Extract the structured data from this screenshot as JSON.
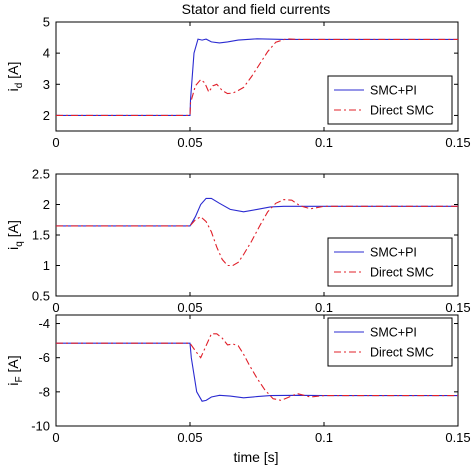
{
  "figure": {
    "title": "Stator and field currents",
    "xlabel": "time [s]"
  },
  "chart_data": [
    {
      "type": "line",
      "ylabel_main": "i",
      "ylabel_sub": "d",
      "ylabel_unit": "[A]",
      "xlim": [
        0,
        0.15
      ],
      "ylim": [
        1.5,
        5
      ],
      "xticks": [
        0,
        0.05,
        0.1,
        0.15
      ],
      "xtick_labels": [
        "0",
        "0.05",
        "0.1",
        "0.15"
      ],
      "yticks": [
        2,
        3,
        4,
        5
      ],
      "ytick_labels": [
        "2",
        "3",
        "4",
        "5"
      ],
      "legend_position": "bottom-right",
      "series": [
        {
          "name": "SMC+PI",
          "color": "#2b2bd1",
          "dash": "solid",
          "x": [
            0,
            0.05,
            0.0502,
            0.0515,
            0.053,
            0.0545,
            0.056,
            0.058,
            0.061,
            0.064,
            0.068,
            0.075,
            0.085,
            0.1,
            0.12,
            0.15
          ],
          "y": [
            2.0,
            2.0,
            2.5,
            4.0,
            4.45,
            4.42,
            4.45,
            4.36,
            4.33,
            4.36,
            4.42,
            4.46,
            4.44,
            4.44,
            4.44,
            4.44
          ]
        },
        {
          "name": "Direct SMC",
          "color": "#e0202a",
          "dash": "dashdot",
          "x": [
            0,
            0.05,
            0.0502,
            0.052,
            0.054,
            0.0555,
            0.057,
            0.0585,
            0.06,
            0.062,
            0.064,
            0.066,
            0.068,
            0.07,
            0.073,
            0.076,
            0.079,
            0.082,
            0.086,
            0.09,
            0.1,
            0.12,
            0.15
          ],
          "y": [
            2.0,
            2.0,
            2.4,
            2.95,
            3.15,
            3.05,
            2.75,
            2.95,
            3.0,
            2.8,
            2.7,
            2.72,
            2.8,
            2.9,
            3.25,
            3.65,
            4.05,
            4.35,
            4.46,
            4.44,
            4.44,
            4.44,
            4.44
          ]
        }
      ]
    },
    {
      "type": "line",
      "ylabel_main": "i",
      "ylabel_sub": "q",
      "ylabel_unit": "[A]",
      "xlim": [
        0,
        0.15
      ],
      "ylim": [
        0.5,
        2.5
      ],
      "xticks": [
        0,
        0.05,
        0.1,
        0.15
      ],
      "xtick_labels": [
        "0",
        "0.05",
        "0.1",
        "0.15"
      ],
      "yticks": [
        0.5,
        1,
        1.5,
        2,
        2.5
      ],
      "ytick_labels": [
        "0.5",
        "1",
        "1.5",
        "2",
        "2.5"
      ],
      "legend_position": "bottom-right",
      "series": [
        {
          "name": "SMC+PI",
          "color": "#2b2bd1",
          "dash": "solid",
          "x": [
            0,
            0.05,
            0.052,
            0.054,
            0.056,
            0.058,
            0.061,
            0.065,
            0.07,
            0.075,
            0.08,
            0.085,
            0.09,
            0.1,
            0.12,
            0.15
          ],
          "y": [
            1.65,
            1.65,
            1.8,
            2.0,
            2.1,
            2.1,
            2.02,
            1.92,
            1.88,
            1.92,
            1.96,
            1.97,
            1.97,
            1.97,
            1.97,
            1.97
          ]
        },
        {
          "name": "Direct SMC",
          "color": "#e0202a",
          "dash": "dashdot",
          "x": [
            0,
            0.05,
            0.052,
            0.054,
            0.056,
            0.058,
            0.06,
            0.062,
            0.064,
            0.066,
            0.068,
            0.07,
            0.073,
            0.076,
            0.079,
            0.082,
            0.085,
            0.088,
            0.091,
            0.095,
            0.1,
            0.12,
            0.15
          ],
          "y": [
            1.65,
            1.65,
            1.75,
            1.8,
            1.72,
            1.55,
            1.3,
            1.1,
            1.0,
            1.0,
            1.05,
            1.18,
            1.4,
            1.65,
            1.88,
            2.02,
            2.08,
            2.07,
            1.98,
            1.93,
            1.97,
            1.97,
            1.97
          ]
        }
      ]
    },
    {
      "type": "line",
      "ylabel_main": "i",
      "ylabel_sub": "F",
      "ylabel_unit": "[A]",
      "xlim": [
        0,
        0.15
      ],
      "ylim": [
        -10,
        -3.5
      ],
      "xticks": [
        0,
        0.05,
        0.1,
        0.15
      ],
      "xtick_labels": [
        "0",
        "0.05",
        "0.1",
        "0.15"
      ],
      "yticks": [
        -10,
        -8,
        -6,
        -4
      ],
      "ytick_labels": [
        "-10",
        "-8",
        "-6",
        "-4"
      ],
      "legend_position": "top-right",
      "series": [
        {
          "name": "SMC+PI",
          "color": "#2b2bd1",
          "dash": "solid",
          "x": [
            0,
            0.05,
            0.0505,
            0.0525,
            0.0545,
            0.056,
            0.058,
            0.061,
            0.065,
            0.07,
            0.075,
            0.08,
            0.09,
            0.1,
            0.12,
            0.15
          ],
          "y": [
            -5.15,
            -5.15,
            -6.0,
            -8.0,
            -8.55,
            -8.5,
            -8.3,
            -8.2,
            -8.25,
            -8.35,
            -8.28,
            -8.22,
            -8.2,
            -8.22,
            -8.22,
            -8.22
          ]
        },
        {
          "name": "Direct SMC",
          "color": "#e0202a",
          "dash": "dashdot",
          "x": [
            0,
            0.05,
            0.052,
            0.054,
            0.056,
            0.058,
            0.06,
            0.062,
            0.064,
            0.066,
            0.068,
            0.07,
            0.072,
            0.075,
            0.078,
            0.081,
            0.084,
            0.087,
            0.09,
            0.095,
            0.1,
            0.12,
            0.15
          ],
          "y": [
            -5.15,
            -5.15,
            -5.6,
            -6.0,
            -5.3,
            -4.6,
            -4.6,
            -4.85,
            -5.25,
            -5.2,
            -5.3,
            -5.8,
            -6.4,
            -7.2,
            -7.9,
            -8.4,
            -8.5,
            -8.3,
            -8.1,
            -8.3,
            -8.22,
            -8.22,
            -8.22
          ]
        }
      ]
    }
  ]
}
